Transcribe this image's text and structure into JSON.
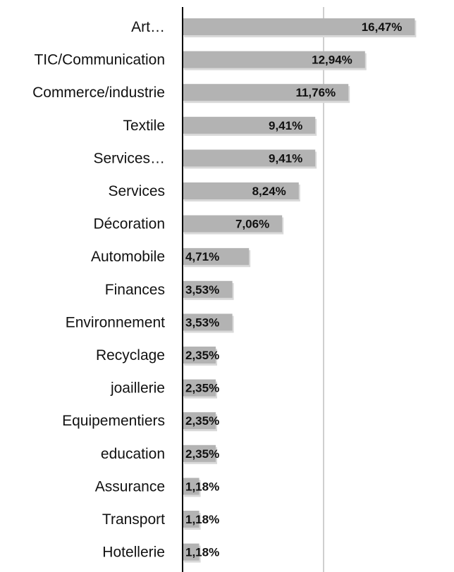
{
  "chart_data": {
    "type": "bar",
    "orientation": "horizontal",
    "title": "",
    "xlabel": "",
    "ylabel": "",
    "categories": [
      "Art…",
      "TIC/Communication",
      "Commerce/industrie",
      "Textile",
      "Services…",
      "Services",
      "Décoration",
      "Automobile",
      "Finances",
      "Environnement",
      "Recyclage",
      "joaillerie",
      "Equipementiers",
      "education",
      "Assurance",
      "Transport",
      "Hotellerie"
    ],
    "values": [
      16.47,
      12.94,
      11.76,
      9.41,
      9.41,
      8.24,
      7.06,
      4.71,
      3.53,
      3.53,
      2.35,
      2.35,
      2.35,
      2.35,
      1.18,
      1.18,
      1.18
    ],
    "value_labels": [
      "16,47%",
      "12,94%",
      "11,76%",
      "9,41%",
      "9,41%",
      "8,24%",
      "7,06%",
      "4,71%",
      "3,53%",
      "3,53%",
      "2,35%",
      "2,35%",
      "2,35%",
      "2,35%",
      "1,18%",
      "1,18%",
      "1,18%"
    ],
    "xlim": [
      0,
      20
    ],
    "gridlines_x": [
      10
    ],
    "grid": true,
    "legend": "none",
    "colors": {
      "bar": "#b3b3b3",
      "bar_shadow": "#d9d9d9",
      "axis": "#000000",
      "gridline": "#bfbfbf"
    }
  }
}
